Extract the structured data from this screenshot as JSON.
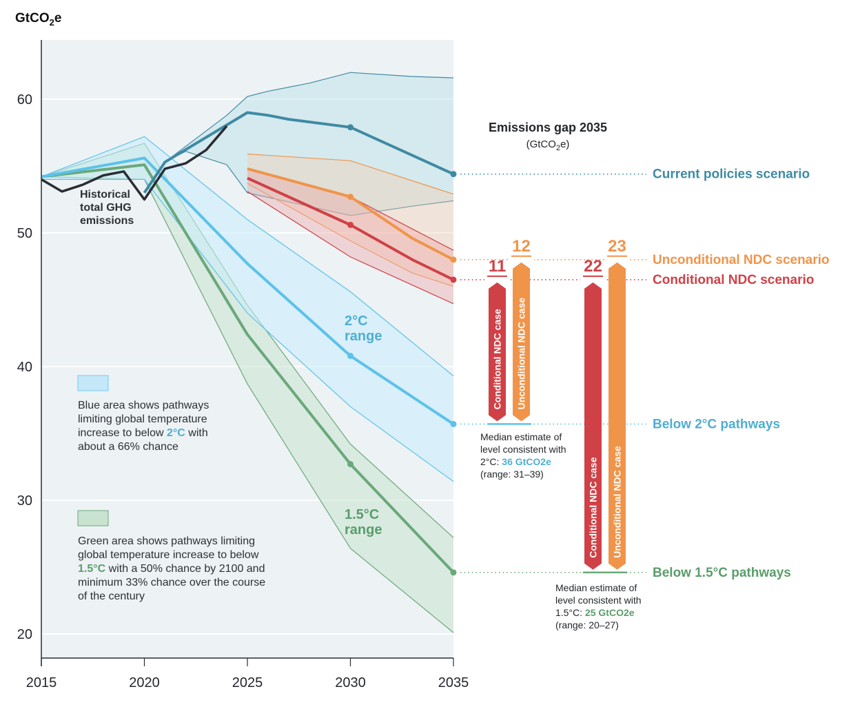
{
  "chart_data": {
    "type": "line",
    "title": "Emissions gap 2035",
    "title_unit": "(GtCO2e)",
    "ylabel": "GtCO2e",
    "xlabel": "",
    "xlim": [
      2015,
      2035
    ],
    "ylim": [
      18,
      64
    ],
    "x_ticks": [
      2015,
      2020,
      2025,
      2030,
      2035
    ],
    "y_ticks": [
      20,
      30,
      40,
      50,
      60
    ],
    "grid": true,
    "colors": {
      "historical": "#2a2d33",
      "current": "#3f8aa3",
      "unconditional": "#f0944a",
      "conditional": "#cf4147",
      "two_c": "#5bc2ea",
      "one5_c": "#6aa87a",
      "two_c_text": "#4faed1",
      "one5_c_text": "#5a9d6a",
      "plot_bg": "#edf2f5"
    },
    "historical": {
      "label": [
        "Historical",
        "total GHG",
        "emissions"
      ],
      "x": [
        2015,
        2016,
        2017,
        2018,
        2019,
        2020,
        2021,
        2022,
        2023,
        2024
      ],
      "y": [
        54.0,
        53.1,
        53.6,
        54.3,
        54.6,
        52.5,
        54.8,
        55.2,
        56.2,
        58.0
      ]
    },
    "bands": [
      {
        "name": "one5_c",
        "upper": {
          "x": [
            2015,
            2020,
            2025,
            2030,
            2035
          ],
          "y": [
            54.2,
            56.7,
            44.6,
            34.2,
            27.2
          ]
        },
        "lower": {
          "x": [
            2015,
            2020,
            2025,
            2030,
            2035
          ],
          "y": [
            54.2,
            54.0,
            38.7,
            26.4,
            20.1
          ]
        },
        "median": {
          "x": [
            2015,
            2020,
            2025,
            2030,
            2035
          ],
          "y": [
            54.2,
            55.1,
            42.4,
            32.7,
            24.6
          ]
        },
        "fill": "#c8e3cf",
        "fill_opacity": 0.55,
        "range_label": [
          "1.5°C",
          "range"
        ]
      },
      {
        "name": "two_c",
        "upper": {
          "x": [
            2015,
            2020,
            2025,
            2030,
            2035
          ],
          "y": [
            54.2,
            57.2,
            51.0,
            45.6,
            39.3
          ]
        },
        "lower": {
          "x": [
            2015,
            2020,
            2025,
            2030,
            2035
          ],
          "y": [
            54.0,
            54.0,
            44.0,
            37.0,
            31.4
          ]
        },
        "median": {
          "x": [
            2015,
            2020,
            2025,
            2030,
            2035
          ],
          "y": [
            54.2,
            55.6,
            47.7,
            40.8,
            35.7
          ]
        },
        "fill": "#c9ecfb",
        "fill_opacity": 0.55,
        "range_label": [
          "2°C",
          "range"
        ]
      },
      {
        "name": "current",
        "upper": {
          "x": [
            2021,
            2024,
            2025,
            2026,
            2028,
            2030,
            2033,
            2035
          ],
          "y": [
            55.3,
            58.8,
            60.2,
            60.6,
            61.2,
            62.0,
            61.7,
            61.6
          ]
        },
        "lower": {
          "x": [
            2021,
            2022,
            2024,
            2025,
            2030,
            2033,
            2035
          ],
          "y": [
            55.3,
            56.1,
            55.1,
            53.0,
            51.3,
            52.0,
            52.4
          ]
        },
        "median": {
          "x": [
            2020,
            2021,
            2025,
            2026,
            2027,
            2030,
            2035
          ],
          "y": [
            53.0,
            55.3,
            59.0,
            58.8,
            58.5,
            57.9,
            54.4
          ]
        },
        "fill": "#b9e0e6",
        "fill_opacity": 0.45
      },
      {
        "name": "unconditional",
        "upper": {
          "x": [
            2025,
            2030,
            2035
          ],
          "y": [
            55.9,
            55.4,
            52.9
          ]
        },
        "lower": {
          "x": [
            2025,
            2030,
            2033,
            2035
          ],
          "y": [
            53.7,
            49.4,
            47.0,
            46.0
          ]
        },
        "median": {
          "x": [
            2025,
            2030,
            2033,
            2035
          ],
          "y": [
            54.8,
            52.7,
            49.6,
            48.0
          ]
        },
        "fill": "#f7c9a5",
        "fill_opacity": 0.35
      },
      {
        "name": "conditional",
        "upper": {
          "x": [
            2025,
            2030,
            2035
          ],
          "y": [
            54.8,
            52.7,
            48.7
          ]
        },
        "lower": {
          "x": [
            2025,
            2030,
            2035
          ],
          "y": [
            53.1,
            48.2,
            44.7
          ]
        },
        "median": {
          "x": [
            2025,
            2030,
            2033,
            2035
          ],
          "y": [
            54.1,
            50.6,
            48.0,
            46.5
          ]
        },
        "fill": "#eea6a6",
        "fill_opacity": 0.4
      }
    ],
    "scenarios_2035": [
      {
        "key": "current",
        "label": "Current policies scenario",
        "value": 54.4
      },
      {
        "key": "unconditional",
        "label": "Unconditional NDC scenario",
        "value": 48.0
      },
      {
        "key": "conditional",
        "label": "Conditional NDC scenario",
        "value": 46.5
      },
      {
        "key": "two_c",
        "label": "Below 2°C pathways",
        "value": 35.7
      },
      {
        "key": "one5_c",
        "label": "Below 1.5°C pathways",
        "value": 24.6
      }
    ],
    "gaps": [
      {
        "target": "two_c",
        "case": "conditional",
        "value": "11",
        "bar_label": "Conditional NDC case"
      },
      {
        "target": "two_c",
        "case": "unconditional",
        "value": "12",
        "bar_label": "Unconditional NDC case"
      },
      {
        "target": "one5_c",
        "case": "conditional",
        "value": "22",
        "bar_label": "Conditional NDC case"
      },
      {
        "target": "one5_c",
        "case": "unconditional",
        "value": "23",
        "bar_label": "Unconditional NDC case"
      }
    ],
    "notes": {
      "two_c": {
        "lines": [
          "Median estimate of",
          "level consistent with"
        ],
        "prefix": "2°C: ",
        "highlight": "36 GtCO2e",
        "range": "(range: 31–39)"
      },
      "one5_c": {
        "lines": [
          "Median estimate of",
          "level consistent with"
        ],
        "prefix": "1.5°C: ",
        "highlight": "25 GtCO2e",
        "range": "(range: 20–27)"
      }
    },
    "legend": {
      "blue": {
        "before": [
          "Blue area shows pathways",
          "limiting global temperature",
          "increase to below "
        ],
        "highlight": "2°C",
        "after_same_line": " with",
        "rest": [
          "about a 66% chance"
        ]
      },
      "green": {
        "lines": [
          "Green area shows pathways limiting",
          "global temperature increase to below"
        ],
        "highlight": "1.5°C",
        "after_same_line": " with a 50% chance by 2100 and",
        "rest": [
          "minimum 33% chance over the course",
          "of the century"
        ]
      }
    }
  }
}
